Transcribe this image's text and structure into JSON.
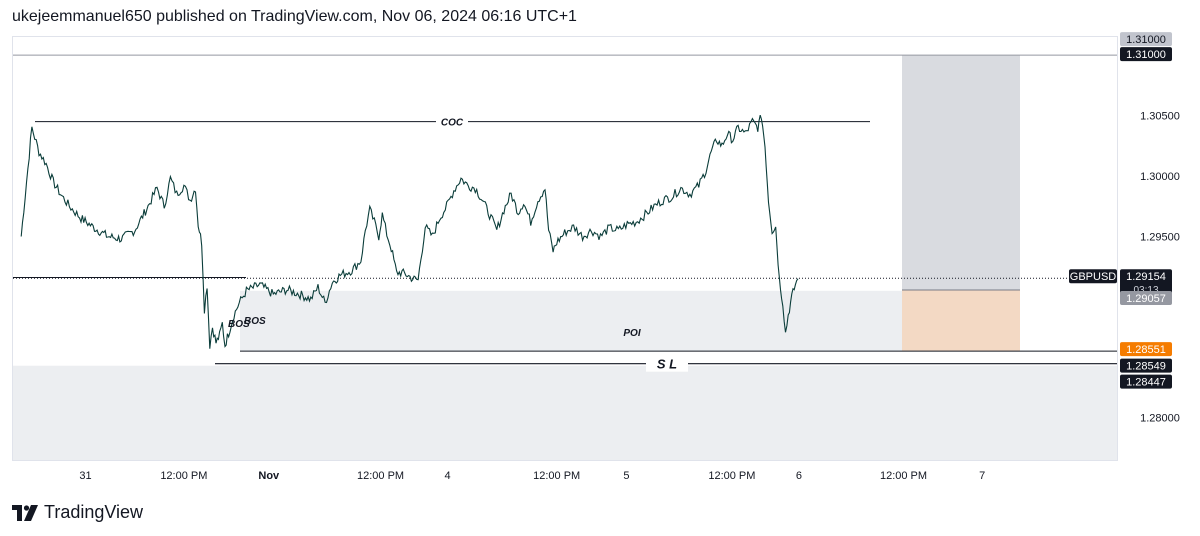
{
  "header": {
    "text": "ukejeemmanuel650 published on TradingView.com, Nov 06, 2024 06:16 UTC+1"
  },
  "footer": {
    "brand": "TradingView"
  },
  "colors": {
    "line": "#0b3d3a",
    "accent": "#26a69a",
    "target_zone": "#d9dbe0",
    "stop_zone": "#f3d9c4",
    "poi_zone": "#eceef1",
    "orange": "#f57c00"
  },
  "chart_data": {
    "type": "line",
    "symbol": "GBPUSD",
    "ylim": [
      1.2765,
      1.3115
    ],
    "y_ticks": [
      "1.30500",
      "1.30000",
      "1.29500",
      "1.28000"
    ],
    "x_tick_labels": [
      {
        "label": "31",
        "t": 0.08
      },
      {
        "label": "12:00 PM",
        "t": 0.19
      },
      {
        "label": "Nov",
        "t": 0.285
      },
      {
        "label": "12:00 PM",
        "t": 0.41
      },
      {
        "label": "4",
        "t": 0.485
      },
      {
        "label": "12:00 PM",
        "t": 0.607
      },
      {
        "label": "5",
        "t": 0.685
      },
      {
        "label": "12:00 PM",
        "t": 0.803
      },
      {
        "label": "6",
        "t": 0.878
      },
      {
        "label": "12:00 PM",
        "t": 0.995
      },
      {
        "label": "7",
        "t": 1.083
      }
    ],
    "price_path": [
      [
        0.0,
        1.297
      ],
      [
        0.008,
        1.295
      ],
      [
        0.02,
        1.304
      ],
      [
        0.028,
        1.302
      ],
      [
        0.036,
        1.301
      ],
      [
        0.044,
        1.2995
      ],
      [
        0.052,
        1.2985
      ],
      [
        0.062,
        1.2975
      ],
      [
        0.075,
        1.2965
      ],
      [
        0.09,
        1.2957
      ],
      [
        0.105,
        1.295
      ],
      [
        0.12,
        1.2948
      ],
      [
        0.135,
        1.2955
      ],
      [
        0.15,
        1.2975
      ],
      [
        0.16,
        1.299
      ],
      [
        0.168,
        1.2975
      ],
      [
        0.175,
        1.2998
      ],
      [
        0.182,
        1.2985
      ],
      [
        0.19,
        1.2992
      ],
      [
        0.197,
        1.298
      ],
      [
        0.203,
        1.299
      ],
      [
        0.206,
        1.296
      ],
      [
        0.21,
        1.2945
      ],
      [
        0.213,
        1.289
      ],
      [
        0.216,
        1.291
      ],
      [
        0.219,
        1.286
      ],
      [
        0.222,
        1.2875
      ],
      [
        0.226,
        1.2862
      ],
      [
        0.23,
        1.2868
      ],
      [
        0.233,
        1.2878
      ],
      [
        0.236,
        1.286
      ],
      [
        0.24,
        1.287
      ],
      [
        0.246,
        1.2885
      ],
      [
        0.252,
        1.2895
      ],
      [
        0.26,
        1.2905
      ],
      [
        0.275,
        1.291
      ],
      [
        0.29,
        1.2902
      ],
      [
        0.305,
        1.2906
      ],
      [
        0.32,
        1.2902
      ],
      [
        0.332,
        1.2898
      ],
      [
        0.34,
        1.2908
      ],
      [
        0.348,
        1.2895
      ],
      [
        0.356,
        1.2912
      ],
      [
        0.365,
        1.2918
      ],
      [
        0.378,
        1.2922
      ],
      [
        0.388,
        1.293
      ],
      [
        0.393,
        1.2955
      ],
      [
        0.398,
        1.2972
      ],
      [
        0.403,
        1.2962
      ],
      [
        0.408,
        1.295
      ],
      [
        0.412,
        1.2968
      ],
      [
        0.417,
        1.2952
      ],
      [
        0.422,
        1.294
      ],
      [
        0.428,
        1.292
      ],
      [
        0.434,
        1.292
      ],
      [
        0.44,
        1.2918
      ],
      [
        0.446,
        1.2915
      ],
      [
        0.452,
        1.2914
      ],
      [
        0.46,
        1.2958
      ],
      [
        0.468,
        1.295
      ],
      [
        0.476,
        1.2965
      ],
      [
        0.484,
        1.2975
      ],
      [
        0.492,
        1.2988
      ],
      [
        0.5,
        1.2998
      ],
      [
        0.508,
        1.2992
      ],
      [
        0.516,
        1.299
      ],
      [
        0.524,
        1.298
      ],
      [
        0.532,
        1.2968
      ],
      [
        0.54,
        1.2955
      ],
      [
        0.548,
        1.2972
      ],
      [
        0.556,
        1.2985
      ],
      [
        0.564,
        1.297
      ],
      [
        0.57,
        1.2978
      ],
      [
        0.578,
        1.2962
      ],
      [
        0.586,
        1.298
      ],
      [
        0.594,
        1.299
      ],
      [
        0.598,
        1.2955
      ],
      [
        0.603,
        1.2938
      ],
      [
        0.607,
        1.2945
      ],
      [
        0.616,
        1.2953
      ],
      [
        0.626,
        1.2958
      ],
      [
        0.636,
        1.295
      ],
      [
        0.646,
        1.2955
      ],
      [
        0.656,
        1.295
      ],
      [
        0.666,
        1.2957
      ],
      [
        0.676,
        1.2955
      ],
      [
        0.686,
        1.296
      ],
      [
        0.696,
        1.2962
      ],
      [
        0.706,
        1.2968
      ],
      [
        0.716,
        1.2975
      ],
      [
        0.726,
        1.298
      ],
      [
        0.736,
        1.2983
      ],
      [
        0.746,
        1.299
      ],
      [
        0.756,
        1.2985
      ],
      [
        0.766,
        1.2992
      ],
      [
        0.774,
        1.3005
      ],
      [
        0.78,
        1.302
      ],
      [
        0.786,
        1.303
      ],
      [
        0.792,
        1.3025
      ],
      [
        0.798,
        1.3035
      ],
      [
        0.804,
        1.303
      ],
      [
        0.81,
        1.304
      ],
      [
        0.818,
        1.3035
      ],
      [
        0.826,
        1.3045
      ],
      [
        0.832,
        1.304
      ],
      [
        0.836,
        1.305
      ],
      [
        0.84,
        1.3025
      ],
      [
        0.844,
        1.298
      ],
      [
        0.848,
        1.2955
      ],
      [
        0.852,
        1.2958
      ],
      [
        0.856,
        1.2915
      ],
      [
        0.86,
        1.2895
      ],
      [
        0.863,
        1.287
      ],
      [
        0.866,
        1.2885
      ],
      [
        0.87,
        1.29
      ],
      [
        0.874,
        1.291
      ],
      [
        0.877,
        1.2915
      ]
    ],
    "levels": {
      "target": 1.31,
      "coc": 1.3045,
      "bos": 1.2916,
      "current": 1.29154,
      "entry": 1.29057,
      "poi_top": 1.2905,
      "stop": 1.28551,
      "sl": 1.28447,
      "demand_top": 1.2843
    },
    "annotations": {
      "coc": "COC",
      "bos_left": "BOS",
      "bos_right": "BOS",
      "poi": "POI",
      "sl": "S L"
    },
    "price_labels": {
      "target_top": "1.31000",
      "target": "1.31000",
      "symbol": "GBPUSD",
      "current": "1.29154",
      "countdown": "03:13",
      "entry": "1.29057",
      "stop": "1.28551",
      "level_a": "1.28549",
      "level_b": "1.28447"
    }
  }
}
